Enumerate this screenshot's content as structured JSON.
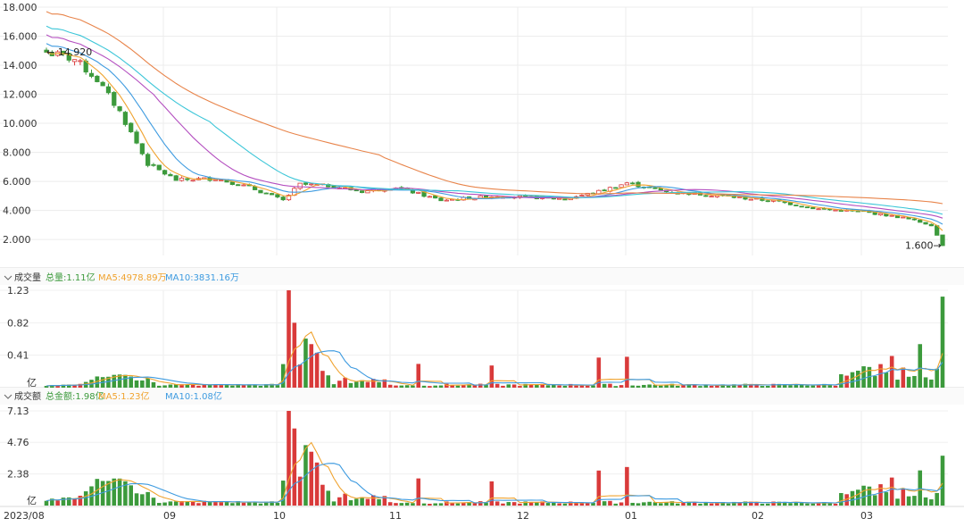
{
  "chart_data": [
    {
      "type": "candlestick",
      "panel": "price",
      "y_ticks": [
        "18.000",
        "16.000",
        "14.000",
        "12.000",
        "10.000",
        "8.000",
        "6.000",
        "4.000",
        "2.000"
      ],
      "ylim": [
        0.9,
        18.0
      ],
      "x_ticks": [
        "2023/08",
        "09",
        "10",
        "11",
        "12",
        "01",
        "02",
        "03"
      ],
      "grid": true,
      "annotations": {
        "max_label": "14.920",
        "min_label": "1.600"
      },
      "approx_close_path": [
        {
          "x": "2023/08",
          "close": 14.9
        },
        {
          "x": "09",
          "close": 5.6
        },
        {
          "x": "10",
          "close": 5.3
        },
        {
          "x": "11",
          "close": 4.9
        },
        {
          "x": "12",
          "close": 5.9
        },
        {
          "x": "01",
          "close": 5.0
        },
        {
          "x": "02",
          "close": 3.9
        },
        {
          "x": "03",
          "close": 3.4
        },
        {
          "x": "03",
          "close": 1.6
        }
      ],
      "series": [
        {
          "name": "MA5",
          "color": "#f0a32f"
        },
        {
          "name": "MA10",
          "color": "#3e9be0"
        },
        {
          "name": "MA20",
          "color": "#b44fc0"
        },
        {
          "name": "MA30",
          "color": "#3cc6d8"
        },
        {
          "name": "MA60",
          "color": "#e8844a"
        }
      ],
      "colors": {
        "up": "#d93a3a",
        "down": "#3c9a3c"
      }
    },
    {
      "type": "bar",
      "panel": "volume",
      "header": {
        "name": "成交量",
        "total": "总量:1.11亿",
        "ma5": "MA5:4978.89万",
        "ma10": "MA10:3831.16万"
      },
      "y_ticks": [
        "1.23",
        "0.82",
        "0.41",
        "亿"
      ],
      "ylim": [
        0,
        1.23
      ],
      "unit": "亿"
    },
    {
      "type": "bar",
      "panel": "amount",
      "header": {
        "name": "成交额",
        "total": "总金额:1.98亿",
        "ma5": "MA5:1.23亿",
        "ma10": "MA10:1.08亿"
      },
      "y_ticks": [
        "7.13",
        "4.76",
        "2.38",
        "亿"
      ],
      "ylim": [
        0,
        7.13
      ],
      "unit": "亿"
    }
  ],
  "legend_colors": {
    "total": "#3c9a3c",
    "ma5": "#f0a32f",
    "ma10": "#3e9be0"
  }
}
